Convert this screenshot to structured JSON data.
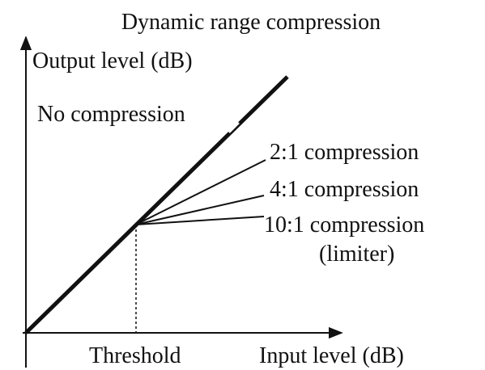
{
  "title": "Dynamic range compression",
  "axes": {
    "y_label": "Output level (dB)",
    "x_label": "Input level (dB)"
  },
  "threshold_label": "Threshold",
  "curves": [
    {
      "label": "No compression"
    },
    {
      "label": "2:1 compression"
    },
    {
      "label": "4:1 compression"
    },
    {
      "label": "10:1 compression",
      "note": "(limiter)"
    }
  ]
}
